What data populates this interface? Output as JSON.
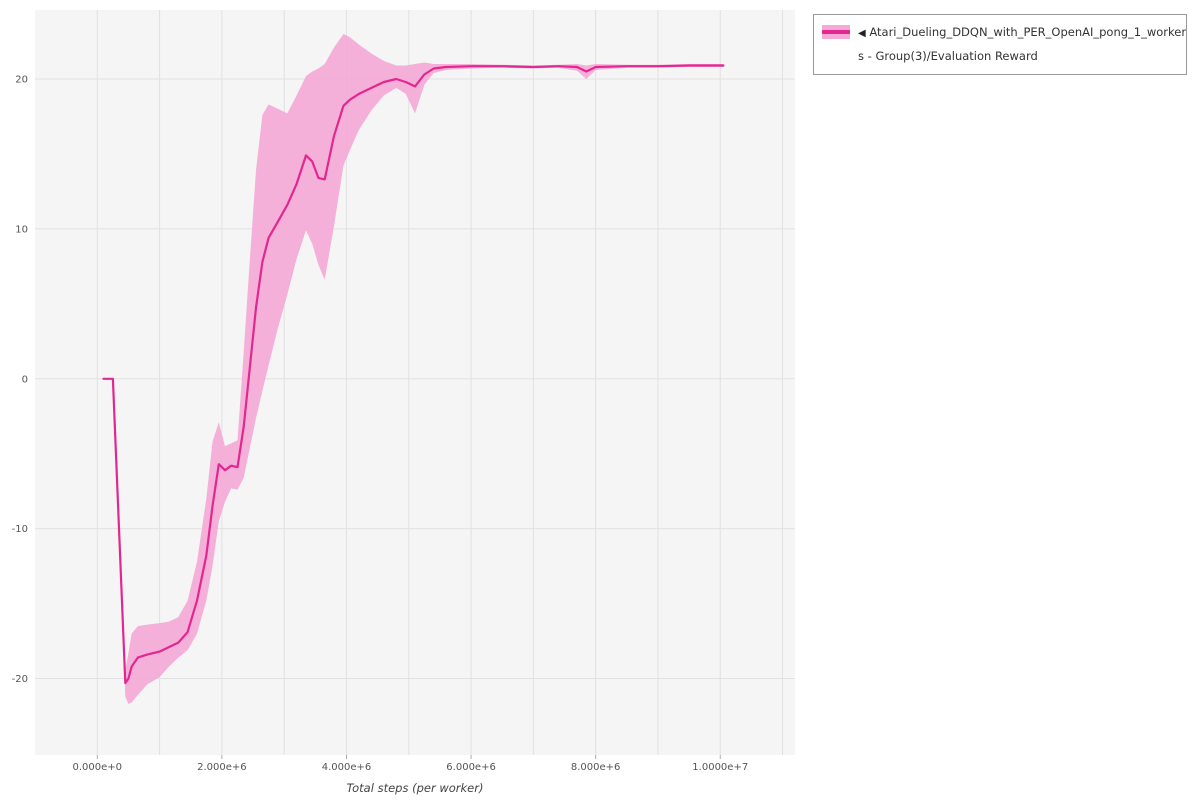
{
  "legend": {
    "collapse_icon": "◀",
    "lines": [
      "Atari_Dueling_DDQN_with_PER_OpenAI_pong_1_worker",
      "s - Group(3)/Evaluation Reward"
    ],
    "full_label": "Atari_Dueling_DDQN_with_PER_OpenAI_pong_1_workers - Group(3)/Evaluation Reward",
    "series_color": "#e32790",
    "band_color": "#f5a9d6"
  },
  "chart_data": {
    "type": "line",
    "title": "",
    "xlabel": "Total steps (per worker)",
    "ylabel": "",
    "grid": true,
    "legend_position": "top-right",
    "xlim": [
      -1000000,
      11200000
    ],
    "ylim": [
      -25.1,
      24.6
    ],
    "x_grid_every": 1000000,
    "x_grid_max": 11000000,
    "x_ticks": {
      "values": [
        0,
        2000000,
        4000000,
        6000000,
        8000000,
        10000000
      ],
      "labels": [
        "0.000e+0",
        "2.000e+6",
        "4.000e+6",
        "6.000e+6",
        "8.000e+6",
        "1.0000e+7"
      ]
    },
    "y_ticks": {
      "values": [
        -20,
        -10,
        0,
        10,
        20
      ],
      "labels": [
        "-20",
        "-10",
        "0",
        "10",
        "20"
      ]
    },
    "colors": {
      "line": "#e32790",
      "band": "#f5a9d6",
      "plot_bg": "#f5f5f5",
      "grid": "#e1e1e1",
      "tick_text": "#555555",
      "axis_title_text": "#444444"
    },
    "series": [
      {
        "name": "Atari_Dueling_DDQN_with_PER_OpenAI_pong_1_workers - Group(3)/Evaluation Reward",
        "x": [
          100000,
          250000,
          450000,
          500000,
          550000,
          650000,
          800000,
          1000000,
          1150000,
          1300000,
          1450000,
          1600000,
          1750000,
          1850000,
          1950000,
          2050000,
          2150000,
          2250000,
          2350000,
          2450000,
          2550000,
          2650000,
          2750000,
          2900000,
          3050000,
          3200000,
          3350000,
          3450000,
          3550000,
          3650000,
          3800000,
          3950000,
          4050000,
          4200000,
          4400000,
          4600000,
          4800000,
          4950000,
          5100000,
          5250000,
          5400000,
          5600000,
          6000000,
          6500000,
          7000000,
          7400000,
          7700000,
          7850000,
          8000000,
          8500000,
          9000000,
          9500000,
          10050000
        ],
        "mean": [
          0,
          0,
          -20.3,
          -20.0,
          -19.2,
          -18.6,
          -18.4,
          -18.2,
          -17.9,
          -17.6,
          -16.9,
          -14.8,
          -11.8,
          -8.5,
          -5.7,
          -6.1,
          -5.8,
          -5.9,
          -3.2,
          0.8,
          4.8,
          7.8,
          9.4,
          10.5,
          11.6,
          13.0,
          14.9,
          14.5,
          13.4,
          13.3,
          16.2,
          18.2,
          18.6,
          19.0,
          19.4,
          19.8,
          20.0,
          19.8,
          19.5,
          20.3,
          20.7,
          20.8,
          20.85,
          20.85,
          20.8,
          20.85,
          20.8,
          20.5,
          20.8,
          20.85,
          20.85,
          20.9,
          20.9
        ],
        "lower": [
          0,
          0,
          -21.2,
          -21.7,
          -21.6,
          -21.1,
          -20.4,
          -19.9,
          -19.2,
          -18.6,
          -18.1,
          -17.0,
          -14.8,
          -12.5,
          -9.5,
          -8.2,
          -7.3,
          -7.4,
          -6.6,
          -4.6,
          -2.6,
          -0.8,
          0.9,
          3.4,
          5.6,
          8.0,
          9.9,
          9.0,
          7.6,
          6.6,
          10.2,
          14.2,
          15.2,
          16.6,
          17.9,
          18.9,
          19.4,
          19.0,
          17.7,
          19.6,
          20.4,
          20.6,
          20.7,
          20.75,
          20.7,
          20.75,
          20.55,
          20.0,
          20.6,
          20.75,
          20.75,
          20.8,
          20.8
        ],
        "upper": [
          0,
          0,
          -19.4,
          -18.3,
          -17.0,
          -16.5,
          -16.4,
          -16.3,
          -16.2,
          -15.9,
          -14.8,
          -12.2,
          -8.0,
          -4.2,
          -2.9,
          -4.5,
          -4.3,
          -4.1,
          1.8,
          8.0,
          14.0,
          17.6,
          18.3,
          18.0,
          17.7,
          18.9,
          20.2,
          20.5,
          20.7,
          21.0,
          22.1,
          23.0,
          22.8,
          22.3,
          21.7,
          21.2,
          20.9,
          20.9,
          21.0,
          21.1,
          21.0,
          21.0,
          21.0,
          20.95,
          20.9,
          20.95,
          21.0,
          20.9,
          21.0,
          20.95,
          20.95,
          21.0,
          21.0
        ]
      }
    ]
  }
}
